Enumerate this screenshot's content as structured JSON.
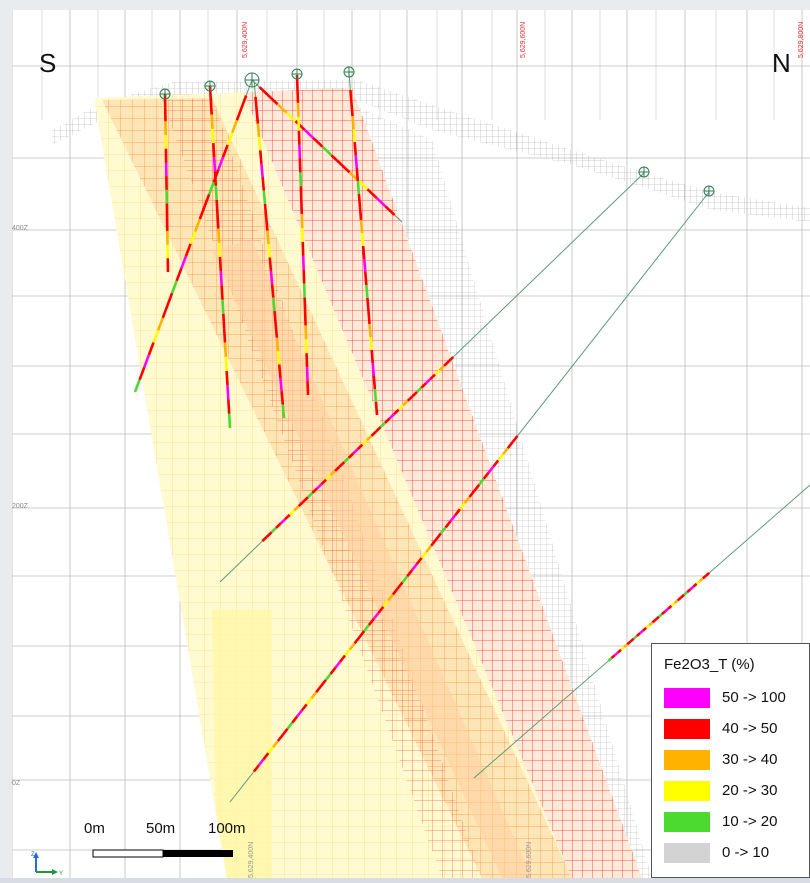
{
  "orientation": {
    "left": "S",
    "right": "N"
  },
  "northing_labels": [
    "5,629,400N",
    "5,629,600N",
    "5,629,800N"
  ],
  "bottom_northing_labels": [
    "5,629,400N",
    "5,629,600N"
  ],
  "elevation_labels": [
    "400Z",
    "200Z",
    "0Z"
  ],
  "legend": {
    "title": "Fe2O3_T (%)",
    "items": [
      {
        "label": "50 -> 100",
        "color": "#ff00ff"
      },
      {
        "label": "40 -> 50",
        "color": "#ff0000"
      },
      {
        "label": "30 -> 40",
        "color": "#ffb300"
      },
      {
        "label": "20 -> 30",
        "color": "#ffff00"
      },
      {
        "label": "10 -> 20",
        "color": "#4cd930"
      },
      {
        "label": "0 -> 10",
        "color": "#d3d3d3"
      }
    ]
  },
  "scale_bar": {
    "labels": [
      "0m",
      "50m",
      "100m"
    ]
  },
  "axis_indicator": {
    "up": "Z",
    "right": "Y"
  },
  "colors": {
    "grid": "#bdbdbd",
    "drillhole": "#5a9a7a",
    "fine_grid": "#a8a8a8"
  }
}
